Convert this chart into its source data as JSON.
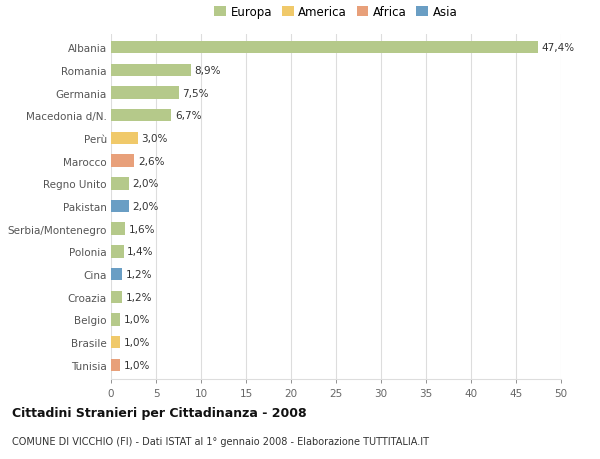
{
  "countries": [
    "Albania",
    "Romania",
    "Germania",
    "Macedonia d/N.",
    "Perù",
    "Marocco",
    "Regno Unito",
    "Pakistan",
    "Serbia/Montenegro",
    "Polonia",
    "Cina",
    "Croazia",
    "Belgio",
    "Brasile",
    "Tunisia"
  ],
  "values": [
    47.4,
    8.9,
    7.5,
    6.7,
    3.0,
    2.6,
    2.0,
    2.0,
    1.6,
    1.4,
    1.2,
    1.2,
    1.0,
    1.0,
    1.0
  ],
  "labels": [
    "47,4%",
    "8,9%",
    "7,5%",
    "6,7%",
    "3,0%",
    "2,6%",
    "2,0%",
    "2,0%",
    "1,6%",
    "1,4%",
    "1,2%",
    "1,2%",
    "1,0%",
    "1,0%",
    "1,0%"
  ],
  "continents": [
    "Europa",
    "Europa",
    "Europa",
    "Europa",
    "America",
    "Africa",
    "Europa",
    "Asia",
    "Europa",
    "Europa",
    "Asia",
    "Europa",
    "Europa",
    "America",
    "Africa"
  ],
  "continent_colors": {
    "Europa": "#b5c98a",
    "America": "#f0c96a",
    "Africa": "#e8a07a",
    "Asia": "#6a9ec4"
  },
  "legend_order": [
    "Europa",
    "America",
    "Africa",
    "Asia"
  ],
  "title": "Cittadini Stranieri per Cittadinanza - 2008",
  "subtitle": "COMUNE DI VICCHIO (FI) - Dati ISTAT al 1° gennaio 2008 - Elaborazione TUTTITALIA.IT",
  "xlim": [
    0,
    50
  ],
  "xticks": [
    0,
    5,
    10,
    15,
    20,
    25,
    30,
    35,
    40,
    45,
    50
  ],
  "background_color": "#ffffff",
  "grid_color": "#dddddd",
  "bar_height": 0.55
}
